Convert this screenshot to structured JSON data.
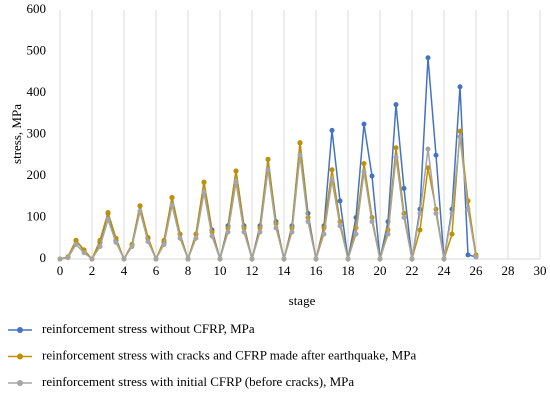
{
  "chart_data": {
    "type": "line",
    "x": [
      0,
      0.5,
      1,
      1.5,
      2,
      2.5,
      3,
      3.5,
      4,
      4.5,
      5,
      5.5,
      6,
      6.5,
      7,
      7.5,
      8,
      8.5,
      9,
      9.5,
      10,
      10.5,
      11,
      11.5,
      12,
      12.5,
      13,
      13.5,
      14,
      14.5,
      15,
      15.5,
      16,
      16.5,
      17,
      17.5,
      18,
      18.5,
      19,
      19.5,
      20,
      20.5,
      21,
      21.5,
      22,
      22.5,
      23,
      23.5,
      24,
      24.5,
      25,
      25.5,
      26
    ],
    "series": [
      {
        "name": "reinforcement stress without CFRP, MPa",
        "color": "#4472c4",
        "values": [
          0,
          5,
          45,
          20,
          0,
          40,
          110,
          45,
          0,
          35,
          128,
          50,
          0,
          40,
          148,
          60,
          0,
          60,
          185,
          70,
          0,
          80,
          212,
          80,
          0,
          80,
          240,
          90,
          0,
          80,
          280,
          110,
          0,
          80,
          310,
          140,
          0,
          100,
          325,
          200,
          0,
          90,
          372,
          170,
          0,
          120,
          485,
          250,
          0,
          120,
          415,
          10,
          5
        ]
      },
      {
        "name": "reinforcement stress with cracks and CFRP made after earthquake, MPa",
        "color": "#bf9000",
        "values": [
          0,
          5,
          45,
          22,
          0,
          45,
          112,
          50,
          0,
          35,
          128,
          52,
          0,
          45,
          148,
          60,
          0,
          60,
          185,
          65,
          0,
          75,
          212,
          75,
          0,
          75,
          240,
          85,
          0,
          75,
          280,
          100,
          0,
          75,
          215,
          90,
          0,
          75,
          230,
          100,
          0,
          70,
          268,
          110,
          0,
          70,
          220,
          120,
          0,
          60,
          308,
          140,
          10
        ]
      },
      {
        "name": "reinforcement stress with initial CFRP (before cracks), MPa",
        "color": "#a5a5a5",
        "values": [
          0,
          3,
          35,
          15,
          0,
          30,
          95,
          40,
          0,
          30,
          115,
          42,
          0,
          35,
          130,
          50,
          0,
          50,
          160,
          55,
          0,
          65,
          185,
          65,
          0,
          65,
          215,
          75,
          0,
          65,
          250,
          90,
          0,
          60,
          190,
          80,
          0,
          60,
          210,
          90,
          0,
          60,
          245,
          100,
          0,
          110,
          265,
          110,
          0,
          110,
          295,
          120,
          5
        ]
      }
    ],
    "xlabel": "stage",
    "ylabel": "stress, MPa",
    "xlim": [
      0,
      30
    ],
    "xticks": [
      0,
      2,
      4,
      6,
      8,
      10,
      12,
      14,
      16,
      18,
      20,
      22,
      24,
      26,
      28,
      30
    ],
    "ylim": [
      0,
      600
    ],
    "yticks": [
      0,
      100,
      200,
      300,
      400,
      500,
      600
    ],
    "grid": "x"
  }
}
